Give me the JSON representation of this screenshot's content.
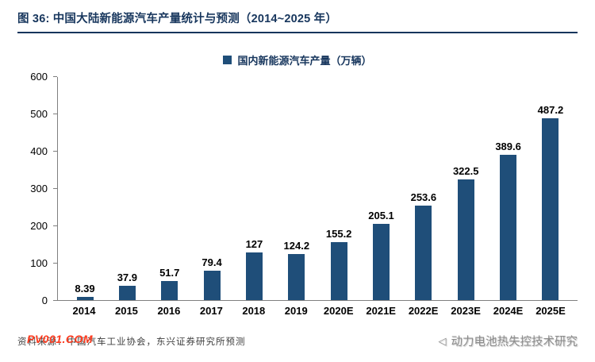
{
  "header": {
    "title": "图 36: 中国大陆新能源汽车产量统计与预测（2014~2025 年）"
  },
  "chart_data": {
    "type": "bar",
    "title": "图 36: 中国大陆新能源汽车产量统计与预测（2014~2025 年）",
    "legend": "国内新能源汽车产量（万辆）",
    "categories": [
      "2014",
      "2015",
      "2016",
      "2017",
      "2018",
      "2019",
      "2020E",
      "2021E",
      "2022E",
      "2023E",
      "2024E",
      "2025E"
    ],
    "values": [
      8.39,
      37.9,
      51.7,
      79.4,
      127,
      124.2,
      155.2,
      205.1,
      253.6,
      322.5,
      389.6,
      487.2
    ],
    "xlabel": "",
    "ylabel": "",
    "ylim": [
      0,
      600
    ],
    "yticks": [
      0,
      100,
      200,
      300,
      400,
      500,
      600
    ],
    "bar_color": "#1f4e79",
    "grid": false,
    "legend_position": "top-center"
  },
  "footer": {
    "source": "资料来源：中国汽车工业协会，东兴证券研究所预测",
    "watermark_left": "PV001.COM",
    "watermark_right": "动力电池热失控技术研究",
    "watermark_right_icon": "◁"
  }
}
